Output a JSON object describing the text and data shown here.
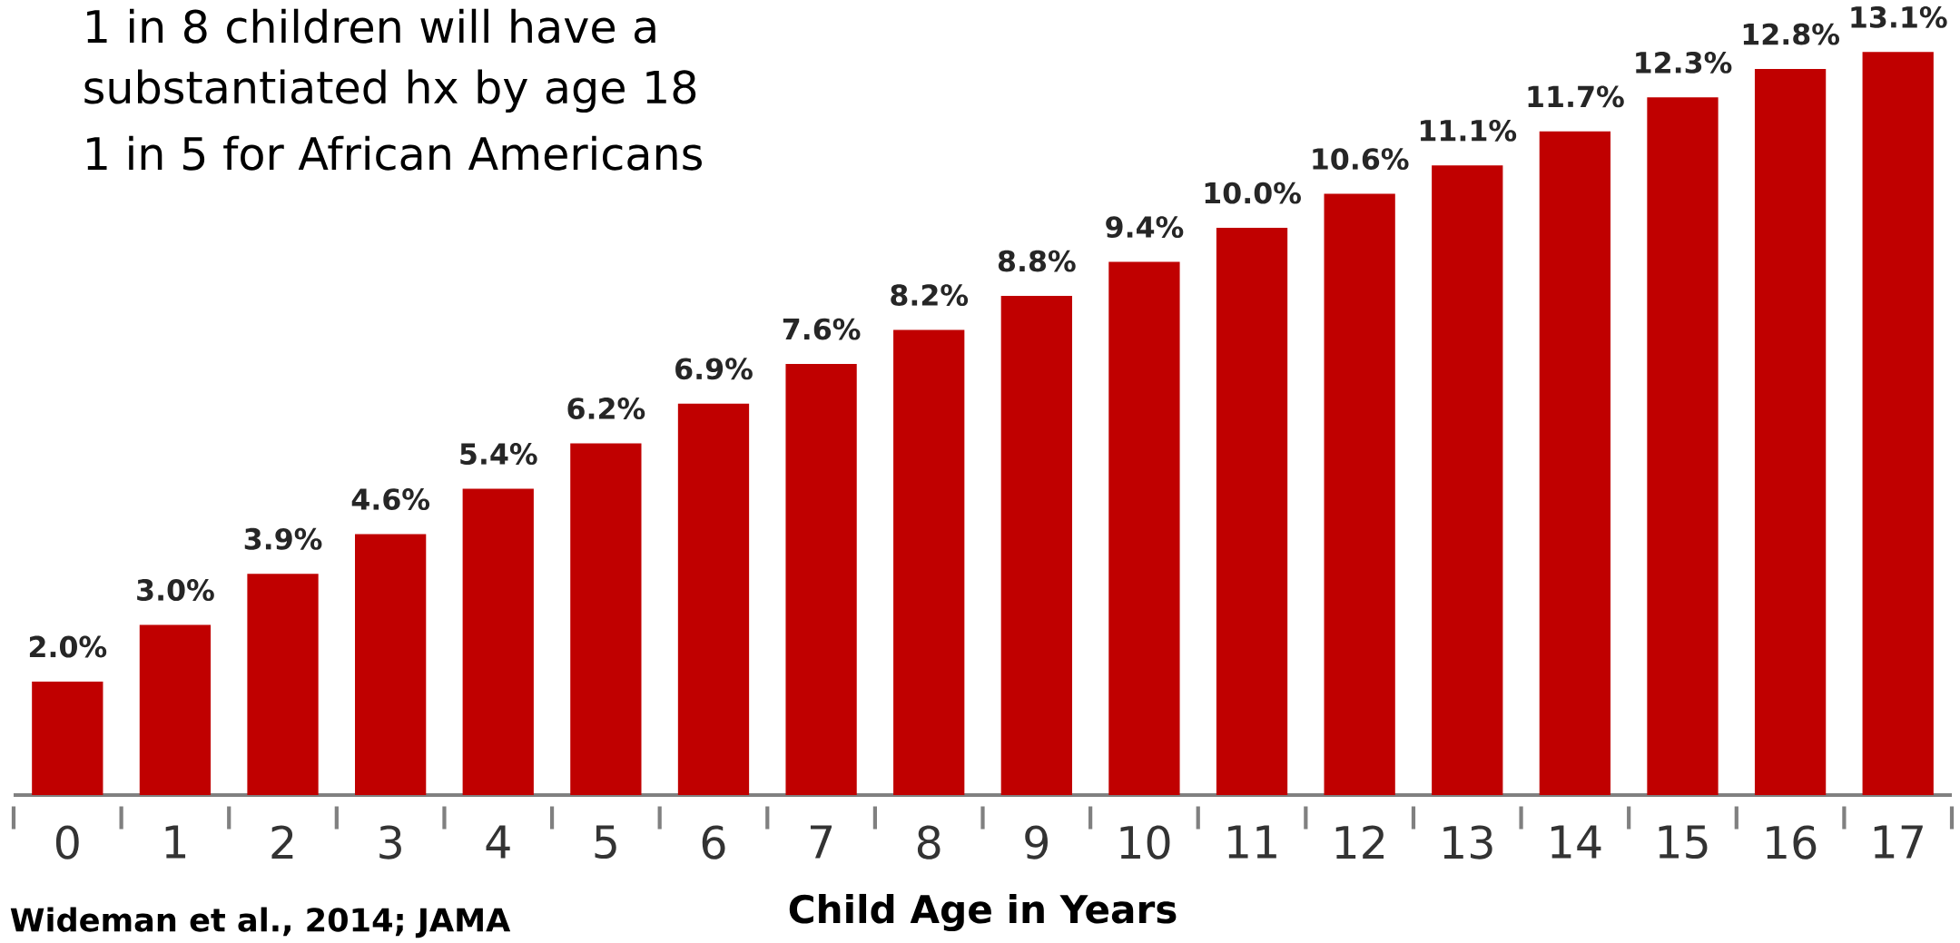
{
  "chart_data": {
    "type": "bar",
    "xlabel": "Child Age in Years",
    "categories": [
      "0",
      "1",
      "2",
      "3",
      "4",
      "5",
      "6",
      "7",
      "8",
      "9",
      "10",
      "11",
      "12",
      "13",
      "14",
      "15",
      "16",
      "17"
    ],
    "values": [
      2.0,
      3.0,
      3.9,
      4.6,
      5.4,
      6.2,
      6.9,
      7.6,
      8.2,
      8.8,
      9.4,
      10.0,
      10.6,
      11.1,
      11.7,
      12.3,
      12.8,
      13.1
    ],
    "value_labels": [
      "2.0%",
      "3.0%",
      "3.9%",
      "4.6%",
      "5.4%",
      "6.2%",
      "6.9%",
      "7.6%",
      "8.2%",
      "8.8%",
      "9.4%",
      "10.0%",
      "10.6%",
      "11.1%",
      "11.7%",
      "12.3%",
      "12.8%",
      "13.1%"
    ],
    "color": "#c00000",
    "annotations": [
      "1 in 8 children will have a substantiated hx by age 18",
      "1 in 5 for African Americans",
      "Wideman et al., 2014; JAMA"
    ]
  }
}
